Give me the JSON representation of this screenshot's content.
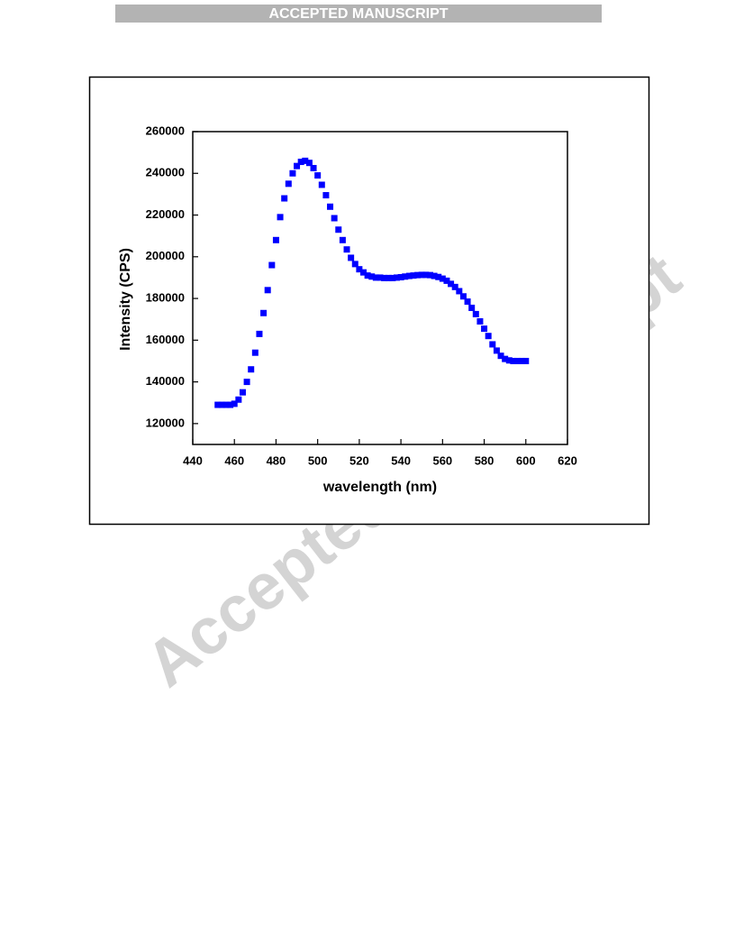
{
  "header": {
    "text": "ACCEPTED MANUSCRIPT"
  },
  "watermark": "Accepted Manuscript",
  "chart_data": {
    "type": "scatter",
    "x_label": "wavelength (nm)",
    "y_label": "Intensity (CPS)",
    "x": [
      452,
      454,
      456,
      458,
      460,
      462,
      464,
      466,
      468,
      470,
      472,
      474,
      476,
      478,
      480,
      482,
      484,
      486,
      488,
      490,
      492,
      494,
      496,
      498,
      500,
      502,
      504,
      506,
      508,
      510,
      512,
      514,
      516,
      518,
      520,
      522,
      524,
      526,
      528,
      530,
      532,
      534,
      536,
      538,
      540,
      542,
      544,
      546,
      548,
      550,
      552,
      554,
      556,
      558,
      560,
      562,
      564,
      566,
      568,
      570,
      572,
      574,
      576,
      578,
      580,
      582,
      584,
      586,
      588,
      590,
      592,
      594,
      596,
      598,
      600
    ],
    "values": [
      129000,
      129000,
      129000,
      129000,
      129500,
      131500,
      135000,
      140000,
      146000,
      154000,
      163000,
      173000,
      184000,
      196000,
      208000,
      219000,
      228000,
      235000,
      240000,
      243500,
      245500,
      246000,
      245000,
      242500,
      239000,
      234500,
      229500,
      224000,
      218500,
      213000,
      208000,
      203500,
      199500,
      196500,
      194000,
      192500,
      191000,
      190500,
      190000,
      190000,
      189800,
      189800,
      189800,
      190000,
      190200,
      190500,
      190800,
      191000,
      191200,
      191300,
      191300,
      191200,
      190800,
      190300,
      189500,
      188500,
      187000,
      185500,
      183500,
      181000,
      178500,
      175500,
      172500,
      169000,
      165500,
      162000,
      158000,
      155000,
      152500,
      151000,
      150300,
      150000,
      150000,
      150000,
      150000
    ],
    "color": "#0000ff",
    "xlim": [
      440,
      620
    ],
    "xticks": [
      440,
      460,
      480,
      500,
      520,
      540,
      560,
      580,
      600,
      620
    ],
    "ylim": [
      110000,
      260000
    ],
    "yticks": [
      120000,
      140000,
      160000,
      180000,
      200000,
      220000,
      240000,
      260000
    ]
  }
}
